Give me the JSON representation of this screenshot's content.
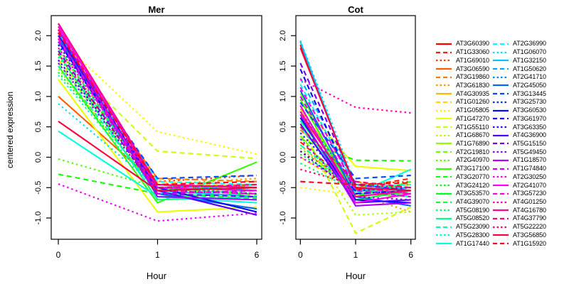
{
  "chart_data": {
    "type": "line",
    "x_categories": [
      "0",
      "1",
      "6"
    ],
    "x_values": [
      0,
      1,
      6
    ],
    "x_scale": "equally-spaced-categories",
    "grid": false,
    "legend_position": "right",
    "legend_columns": 2,
    "lty_cycle": [
      "solid",
      "dashed",
      "dotted"
    ],
    "panel_keys": [
      "mer",
      "cot"
    ],
    "panels": [
      {
        "title": "Mer",
        "xlabel": "Hour",
        "ylabel": "centered expression",
        "yticks": [
          "-1.0",
          "-0.5",
          "0.0",
          "0.5",
          "1.0",
          "1.5",
          "2.0"
        ],
        "ylim": [
          -1.35,
          2.33
        ]
      },
      {
        "title": "Cot",
        "xlabel": "Hour",
        "yticks": [
          "-1.0",
          "-0.5",
          "0.0",
          "0.5",
          "1.0",
          "1.5",
          "2.0"
        ],
        "ylim": [
          -1.35,
          2.33
        ]
      }
    ],
    "series": [
      {
        "name": "AT3G60390",
        "color": "#FF0000",
        "lty": "solid",
        "mer": [
          2.2,
          -0.45,
          -0.5
        ],
        "cot": [
          1.85,
          -0.52,
          -0.6
        ]
      },
      {
        "name": "AT1G33060",
        "color": "#FF1F00",
        "lty": "dashed",
        "mer": [
          2.15,
          -0.5,
          -0.45
        ],
        "cot": [
          0.25,
          -0.5,
          -0.35
        ]
      },
      {
        "name": "AT1G69010",
        "color": "#FF3D00",
        "lty": "dotted",
        "mer": [
          1.85,
          -0.4,
          -0.3
        ],
        "cot": [
          0.1,
          -0.45,
          -0.4
        ]
      },
      {
        "name": "AT3G06590",
        "color": "#FF5C00",
        "lty": "solid",
        "mer": [
          1.0,
          -0.45,
          -0.55
        ],
        "cot": [
          0.7,
          -0.55,
          -0.6
        ]
      },
      {
        "name": "AT3G19860",
        "color": "#FF7A00",
        "lty": "dashed",
        "mer": [
          1.9,
          -0.35,
          -0.4
        ],
        "cot": [
          0.45,
          -0.4,
          -0.55
        ]
      },
      {
        "name": "AT3G61830",
        "color": "#FF9900",
        "lty": "dotted",
        "mer": [
          1.75,
          -0.45,
          -0.35
        ],
        "cot": [
          0.2,
          -0.6,
          -0.9
        ]
      },
      {
        "name": "AT4G30935",
        "color": "#FFB800",
        "lty": "solid",
        "mer": [
          1.95,
          -0.5,
          -0.55
        ],
        "cot": [
          0.8,
          -0.5,
          -0.45
        ]
      },
      {
        "name": "AT1G01260",
        "color": "#FFD600",
        "lty": "dashed",
        "mer": [
          1.6,
          -0.4,
          -0.5
        ],
        "cot": [
          0.0,
          -0.55,
          -0.5
        ]
      },
      {
        "name": "AT1G05805",
        "color": "#FFF500",
        "lty": "dotted",
        "mer": [
          1.95,
          0.42,
          0.05
        ],
        "cot": [
          -0.5,
          -0.62,
          -0.55
        ]
      },
      {
        "name": "AT1G47270",
        "color": "#EBFF00",
        "lty": "solid",
        "mer": [
          1.28,
          -0.9,
          -0.82
        ],
        "cot": [
          0.9,
          -0.15,
          -0.22
        ]
      },
      {
        "name": "AT1G55110",
        "color": "#CCFF00",
        "lty": "dashed",
        "mer": [
          1.72,
          0.1,
          -0.02
        ],
        "cot": [
          0.55,
          -1.25,
          -0.82
        ]
      },
      {
        "name": "AT1G68670",
        "color": "#ADFF00",
        "lty": "dotted",
        "mer": [
          1.45,
          -0.55,
          -0.5
        ],
        "cot": [
          0.4,
          -0.95,
          -0.9
        ]
      },
      {
        "name": "AT1G76890",
        "color": "#8FFF00",
        "lty": "solid",
        "mer": [
          2.1,
          -0.6,
          -0.55
        ],
        "cot": [
          1.05,
          -0.6,
          -0.65
        ]
      },
      {
        "name": "AT2G19810",
        "color": "#70FF00",
        "lty": "dashed",
        "mer": [
          1.55,
          -0.5,
          -0.62
        ],
        "cot": [
          0.35,
          -0.7,
          -0.75
        ]
      },
      {
        "name": "AT2G40970",
        "color": "#52FF00",
        "lty": "dotted",
        "mer": [
          -0.03,
          -0.5,
          -0.6
        ],
        "cot": [
          0.15,
          -0.55,
          -0.5
        ]
      },
      {
        "name": "AT3G17100",
        "color": "#33FF00",
        "lty": "solid",
        "mer": [
          1.5,
          -0.75,
          -0.08
        ],
        "cot": [
          0.95,
          -0.65,
          -0.4
        ]
      },
      {
        "name": "AT3G20770",
        "color": "#14FF00",
        "lty": "dashed",
        "mer": [
          -0.28,
          -0.6,
          -0.68
        ],
        "cot": [
          0.3,
          -0.05,
          -0.06
        ]
      },
      {
        "name": "AT3G24120",
        "color": "#00FF0A",
        "lty": "dotted",
        "mer": [
          1.4,
          -0.55,
          -0.45
        ],
        "cot": [
          0.05,
          -0.5,
          -0.45
        ]
      },
      {
        "name": "AT3G53570",
        "color": "#00FF29",
        "lty": "solid",
        "mer": [
          2.05,
          -0.65,
          -0.6
        ],
        "cot": [
          0.85,
          -0.7,
          -0.55
        ]
      },
      {
        "name": "AT4G39070",
        "color": "#00FF47",
        "lty": "dashed",
        "mer": [
          1.8,
          -0.55,
          -0.5
        ],
        "cot": [
          0.5,
          -0.45,
          -0.5
        ]
      },
      {
        "name": "AT5G08190",
        "color": "#00FF66",
        "lty": "dotted",
        "mer": [
          1.65,
          -0.45,
          -0.55
        ],
        "cot": [
          -0.1,
          -0.55,
          -0.6
        ]
      },
      {
        "name": "AT5G08520",
        "color": "#00FF85",
        "lty": "solid",
        "mer": [
          1.7,
          -0.7,
          -0.65
        ],
        "cot": [
          0.6,
          -0.6,
          -0.55
        ]
      },
      {
        "name": "AT5G23090",
        "color": "#00FFA3",
        "lty": "dashed",
        "mer": [
          1.5,
          -0.6,
          -0.7
        ],
        "cot": [
          0.2,
          -0.5,
          -0.65
        ]
      },
      {
        "name": "AT5G28300",
        "color": "#00FFC2",
        "lty": "dotted",
        "mer": [
          1.35,
          -0.6,
          -0.55
        ],
        "cot": [
          0.0,
          -0.45,
          -0.55
        ]
      },
      {
        "name": "AT1G17440",
        "color": "#00FFE0",
        "lty": "solid",
        "mer": [
          0.43,
          -0.65,
          -0.75
        ],
        "cot": [
          0.5,
          -0.6,
          -0.2
        ]
      },
      {
        "name": "AT2G36990",
        "color": "#00FFFF",
        "lty": "dashed",
        "mer": [
          2.0,
          -0.4,
          -0.45
        ],
        "cot": [
          1.2,
          -0.5,
          -0.45
        ]
      },
      {
        "name": "AT1G06070",
        "color": "#00E0FF",
        "lty": "dotted",
        "mer": [
          0.88,
          -0.5,
          -0.45
        ],
        "cot": [
          1.92,
          -0.45,
          -0.5
        ]
      },
      {
        "name": "AT1G32150",
        "color": "#00C2FF",
        "lty": "solid",
        "mer": [
          2.05,
          -0.55,
          -0.65
        ],
        "cot": [
          1.9,
          -0.55,
          -0.5
        ]
      },
      {
        "name": "AT1G50620",
        "color": "#00A3FF",
        "lty": "dashed",
        "mer": [
          2.1,
          -0.45,
          -0.55
        ],
        "cot": [
          1.3,
          -0.45,
          -0.55
        ]
      },
      {
        "name": "AT2G41710",
        "color": "#0085FF",
        "lty": "dotted",
        "mer": [
          1.7,
          -0.5,
          -0.6
        ],
        "cot": [
          0.75,
          -0.5,
          -0.6
        ]
      },
      {
        "name": "AT2G45050",
        "color": "#0066FF",
        "lty": "solid",
        "mer": [
          1.95,
          -0.6,
          -0.85
        ],
        "cot": [
          1.1,
          -0.65,
          -0.8
        ]
      },
      {
        "name": "AT3G13445",
        "color": "#0047FF",
        "lty": "dashed",
        "mer": [
          2.0,
          -0.35,
          -0.3
        ],
        "cot": [
          0.9,
          -0.35,
          -0.3
        ]
      },
      {
        "name": "AT3G25730",
        "color": "#0029FF",
        "lty": "dotted",
        "mer": [
          1.85,
          -0.45,
          -0.5
        ],
        "cot": [
          0.4,
          -0.55,
          -0.5
        ]
      },
      {
        "name": "AT3G60530",
        "color": "#000AFF",
        "lty": "solid",
        "mer": [
          1.9,
          -0.5,
          -0.9
        ],
        "cot": [
          0.65,
          -0.7,
          -0.75
        ]
      },
      {
        "name": "AT3G61970",
        "color": "#1400FF",
        "lty": "dashed",
        "mer": [
          2.05,
          -0.55,
          -0.5
        ],
        "cot": [
          1.45,
          -0.6,
          -0.55
        ]
      },
      {
        "name": "AT3G63350",
        "color": "#3300FF",
        "lty": "dotted",
        "mer": [
          1.6,
          -0.5,
          -0.55
        ],
        "cot": [
          0.1,
          -0.6,
          -0.55
        ]
      },
      {
        "name": "AT4G36900",
        "color": "#5200FF",
        "lty": "solid",
        "mer": [
          2.0,
          -0.55,
          -0.95
        ],
        "cot": [
          0.55,
          -0.75,
          -0.7
        ]
      },
      {
        "name": "AT5G15150",
        "color": "#7000FF",
        "lty": "dashed",
        "mer": [
          1.75,
          -0.6,
          -0.65
        ],
        "cot": [
          1.55,
          -0.45,
          -0.55
        ]
      },
      {
        "name": "AT5G49450",
        "color": "#8F00FF",
        "lty": "dotted",
        "mer": [
          1.55,
          -0.55,
          -0.6
        ],
        "cot": [
          0.3,
          -0.65,
          -0.7
        ]
      },
      {
        "name": "AT1G18570",
        "color": "#AD00FF",
        "lty": "solid",
        "mer": [
          2.1,
          -0.65,
          -0.7
        ],
        "cot": [
          0.7,
          -0.8,
          -0.75
        ]
      },
      {
        "name": "AT1G74840",
        "color": "#CC00FF",
        "lty": "dashed",
        "mer": [
          1.9,
          -0.6,
          -0.55
        ],
        "cot": [
          1.0,
          -0.55,
          -0.65
        ]
      },
      {
        "name": "AT2G30250",
        "color": "#EB00FF",
        "lty": "dotted",
        "mer": [
          -0.44,
          -1.05,
          -0.92
        ],
        "cot": [
          0.0,
          -0.5,
          -0.55
        ]
      },
      {
        "name": "AT2G41070",
        "color": "#FF00F5",
        "lty": "solid",
        "mer": [
          2.15,
          -0.5,
          -0.55
        ],
        "cot": [
          0.85,
          -0.75,
          -0.6
        ]
      },
      {
        "name": "AT3G57230",
        "color": "#FF00D6",
        "lty": "dashed",
        "mer": [
          1.95,
          -0.55,
          -0.6
        ],
        "cot": [
          1.15,
          -0.5,
          -0.6
        ]
      },
      {
        "name": "AT4G01250",
        "color": "#FF00B8",
        "lty": "dotted",
        "mer": [
          1.8,
          -0.45,
          -0.5
        ],
        "cot": [
          1.28,
          0.82,
          0.73
        ]
      },
      {
        "name": "AT4G16780",
        "color": "#FF0099",
        "lty": "solid",
        "mer": [
          2.2,
          -0.45,
          -0.5
        ],
        "cot": [
          0.75,
          -0.65,
          -0.55
        ]
      },
      {
        "name": "AT4G37790",
        "color": "#FF007A",
        "lty": "dashed",
        "mer": [
          2.1,
          -0.5,
          -0.45
        ],
        "cot": [
          0.5,
          -0.4,
          -0.5
        ]
      },
      {
        "name": "AT5G22220",
        "color": "#FF005C",
        "lty": "dotted",
        "mer": [
          1.7,
          -0.55,
          -0.5
        ],
        "cot": [
          -0.2,
          -0.45,
          -0.5
        ]
      },
      {
        "name": "AT3G56850",
        "color": "#FF003D",
        "lty": "solid",
        "mer": [
          0.59,
          -0.55,
          -0.5
        ],
        "cot": [
          1.8,
          -0.5,
          -0.55
        ]
      },
      {
        "name": "AT1G15920",
        "color": "#FF001F",
        "lty": "dashed",
        "mer": [
          2.05,
          -0.45,
          -0.4
        ],
        "cot": [
          -0.4,
          -0.45,
          -0.42
        ]
      }
    ],
    "axis_color": "#000000",
    "background_color": "#FFFFFF"
  }
}
